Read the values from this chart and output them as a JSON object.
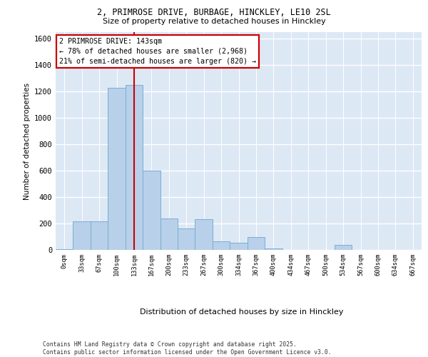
{
  "title_line1": "2, PRIMROSE DRIVE, BURBAGE, HINCKLEY, LE10 2SL",
  "title_line2": "Size of property relative to detached houses in Hinckley",
  "xlabel": "Distribution of detached houses by size in Hinckley",
  "ylabel": "Number of detached properties",
  "footer_line1": "Contains HM Land Registry data © Crown copyright and database right 2025.",
  "footer_line2": "Contains public sector information licensed under the Open Government Licence v3.0.",
  "annotation_line1": "2 PRIMROSE DRIVE: 143sqm",
  "annotation_line2": "← 78% of detached houses are smaller (2,968)",
  "annotation_line3": "21% of semi-detached houses are larger (820) →",
  "bar_color": "#b8d0ea",
  "bar_edge_color": "#7aaed0",
  "vline_color": "#cc0000",
  "vline_x": 4.5,
  "categories": [
    "0sqm",
    "33sqm",
    "67sqm",
    "100sqm",
    "133sqm",
    "167sqm",
    "200sqm",
    "233sqm",
    "267sqm",
    "300sqm",
    "334sqm",
    "367sqm",
    "400sqm",
    "434sqm",
    "467sqm",
    "500sqm",
    "534sqm",
    "567sqm",
    "600sqm",
    "634sqm",
    "667sqm"
  ],
  "values": [
    5,
    215,
    215,
    1230,
    1250,
    600,
    240,
    165,
    235,
    65,
    55,
    100,
    10,
    0,
    0,
    0,
    40,
    0,
    0,
    0,
    0
  ],
  "ylim": [
    0,
    1650
  ],
  "yticks": [
    0,
    200,
    400,
    600,
    800,
    1000,
    1200,
    1400,
    1600
  ],
  "background_color": "#dde8f5",
  "grid_color": "#ffffff",
  "fig_width": 6.0,
  "fig_height": 5.0,
  "fig_dpi": 100
}
